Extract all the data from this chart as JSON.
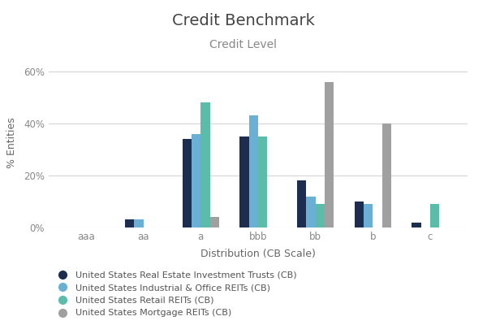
{
  "title": "Credit Benchmark",
  "subtitle": "Credit Level",
  "xlabel": "Distribution (CB Scale)",
  "ylabel": "% Entities",
  "categories": [
    "aaa",
    "aa",
    "a",
    "bbb",
    "bb",
    "b",
    "c"
  ],
  "series": [
    {
      "label": "United States Real Estate Investment Trusts (CB)",
      "color": "#1c2d50",
      "values": [
        0,
        3,
        34,
        35,
        18,
        10,
        2
      ]
    },
    {
      "label": "United States Industrial & Office REITs (CB)",
      "color": "#6ab0d4",
      "values": [
        0,
        3,
        36,
        43,
        12,
        9,
        0
      ]
    },
    {
      "label": "United States Retail REITs (CB)",
      "color": "#5bbcaa",
      "values": [
        0,
        0,
        48,
        35,
        9,
        0,
        9
      ]
    },
    {
      "label": "United States Mortgage REITs (CB)",
      "color": "#a0a0a0",
      "values": [
        0,
        0,
        4,
        0,
        56,
        40,
        0
      ]
    }
  ],
  "ylim": [
    0,
    65
  ],
  "yticks": [
    0,
    20,
    40,
    60
  ],
  "ytick_labels": [
    "0%",
    "20%",
    "40%",
    "60%"
  ],
  "background_color": "#ffffff",
  "grid_color": "#d5d5d5",
  "title_fontsize": 14,
  "subtitle_fontsize": 10,
  "axis_label_fontsize": 9,
  "tick_fontsize": 8.5,
  "legend_fontsize": 8
}
